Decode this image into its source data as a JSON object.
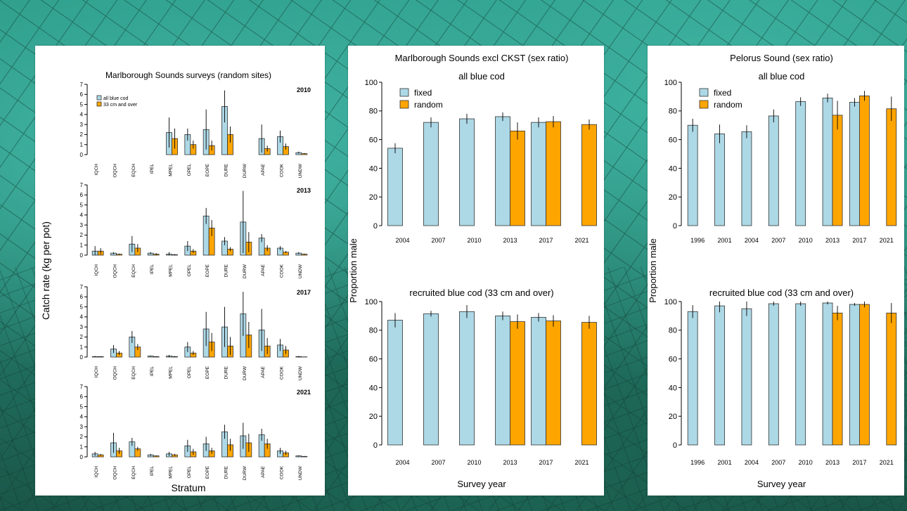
{
  "colors": {
    "fixed": "#add8e6",
    "random": "#ffa500",
    "stroke": "#333333"
  },
  "chart_data": [
    {
      "type": "bar",
      "title": "Marlborough Sounds surveys (random sites)",
      "xlabel": "Stratum",
      "ylabel": "Catch rate (kg per pot)",
      "ylim": [
        0,
        7
      ],
      "yticks": [
        0,
        1,
        2,
        3,
        4,
        5,
        6,
        7
      ],
      "legend": [
        "all blue cod",
        "33 cm and over"
      ],
      "legend_position": "top-left",
      "categories": [
        "IQCH",
        "OQCH",
        "EQCH",
        "IPEL",
        "MPEL",
        "OPEL",
        "EOPE",
        "DURE",
        "DURW",
        "APAE",
        "COOK",
        "UNDW"
      ],
      "facets": [
        {
          "year": "2010",
          "series": [
            {
              "name": "all blue cod",
              "values": [
                null,
                null,
                null,
                null,
                2.2,
                2.0,
                2.5,
                4.8,
                null,
                1.6,
                1.8,
                0.2
              ],
              "err": [
                null,
                null,
                null,
                null,
                1.5,
                0.6,
                2.0,
                1.6,
                null,
                1.4,
                0.6,
                0.1
              ]
            },
            {
              "name": "33 cm and over",
              "values": [
                null,
                null,
                null,
                null,
                1.6,
                1.0,
                0.9,
                2.0,
                null,
                0.6,
                0.8,
                0.1
              ],
              "err": [
                null,
                null,
                null,
                null,
                1.0,
                0.4,
                0.5,
                0.8,
                null,
                0.3,
                0.3,
                0.05
              ]
            }
          ]
        },
        {
          "year": "2013",
          "series": [
            {
              "name": "all blue cod",
              "values": [
                0.4,
                0.2,
                1.1,
                0.2,
                0.1,
                0.9,
                3.9,
                1.4,
                3.3,
                1.7,
                0.7,
                0.2
              ],
              "err": [
                0.5,
                0.1,
                0.8,
                0.1,
                0.2,
                0.5,
                0.8,
                0.4,
                3.1,
                0.4,
                0.2,
                0.1
              ]
            },
            {
              "name": "33 cm and over",
              "values": [
                0.4,
                0.1,
                0.7,
                0.1,
                0.05,
                0.4,
                2.7,
                0.6,
                1.3,
                0.7,
                0.3,
                0.1
              ],
              "err": [
                0.3,
                0.05,
                0.4,
                0.1,
                0.05,
                0.2,
                0.8,
                0.2,
                1.0,
                0.3,
                0.1,
                0.05
              ]
            }
          ]
        },
        {
          "year": "2017",
          "series": [
            {
              "name": "all blue cod",
              "values": [
                0.05,
                0.8,
                2.0,
                0.1,
                0.1,
                1.0,
                2.8,
                3.0,
                4.3,
                2.7,
                1.2,
                0.05
              ],
              "err": [
                0.05,
                0.4,
                0.6,
                0.05,
                0.1,
                0.5,
                1.7,
                2.0,
                2.2,
                2.1,
                0.6,
                0.05
              ]
            },
            {
              "name": "33 cm and over",
              "values": [
                0.05,
                0.4,
                1.0,
                0.05,
                0.05,
                0.4,
                1.5,
                1.1,
                2.2,
                1.1,
                0.7,
                0.02
              ],
              "err": [
                0.03,
                0.2,
                0.3,
                0.03,
                0.05,
                0.2,
                0.9,
                0.9,
                1.3,
                0.8,
                0.4,
                0.02
              ]
            }
          ]
        },
        {
          "year": "2021",
          "series": [
            {
              "name": "all blue cod",
              "values": [
                0.3,
                1.4,
                1.5,
                0.2,
                0.3,
                1.1,
                1.3,
                2.5,
                2.1,
                2.2,
                0.6,
                0.1
              ],
              "err": [
                0.2,
                1.0,
                0.4,
                0.1,
                0.2,
                0.6,
                0.7,
                0.7,
                1.3,
                0.6,
                0.3,
                0.05
              ]
            },
            {
              "name": "33 cm and over",
              "values": [
                0.2,
                0.6,
                0.8,
                0.1,
                0.2,
                0.5,
                0.6,
                1.2,
                1.4,
                1.3,
                0.4,
                0.05
              ],
              "err": [
                0.1,
                0.3,
                0.2,
                0.05,
                0.1,
                0.3,
                0.3,
                0.6,
                0.9,
                0.5,
                0.2,
                0.03
              ]
            }
          ]
        }
      ]
    },
    {
      "type": "bar",
      "title": "Marlborough Sounds excl CKST (sex ratio)",
      "xlabel": "Survey year",
      "ylabel": "Proportion male",
      "ylim": [
        0,
        100
      ],
      "yticks": [
        0,
        20,
        40,
        60,
        80,
        100
      ],
      "legend": [
        "fixed",
        "random"
      ],
      "legend_position": "top-left",
      "categories": [
        "2004",
        "2007",
        "2010",
        "2013",
        "2017",
        "2021"
      ],
      "facets": [
        {
          "subtitle": "all blue cod",
          "series": [
            {
              "name": "fixed",
              "values": [
                54,
                72,
                74.5,
                76,
                72,
                null
              ],
              "err": [
                3.5,
                3.5,
                3.5,
                3,
                3.5,
                null
              ]
            },
            {
              "name": "random",
              "values": [
                null,
                null,
                null,
                66,
                72.5,
                70.5
              ],
              "err": [
                null,
                null,
                null,
                6,
                4,
                3.5
              ]
            }
          ]
        },
        {
          "subtitle": "recruited blue cod (33 cm and over)",
          "series": [
            {
              "name": "fixed",
              "values": [
                87,
                91.5,
                93,
                90,
                89,
                null
              ],
              "err": [
                5,
                2,
                4.5,
                3,
                3,
                null
              ]
            },
            {
              "name": "random",
              "values": [
                null,
                null,
                null,
                86,
                86.5,
                85.5
              ],
              "err": [
                null,
                null,
                null,
                5,
                4,
                4.5
              ]
            }
          ]
        }
      ]
    },
    {
      "type": "bar",
      "title": "Pelorus Sound (sex ratio)",
      "xlabel": "Survey year",
      "ylabel": "Proportion male",
      "ylim": [
        0,
        100
      ],
      "yticks": [
        0,
        20,
        40,
        60,
        80,
        100
      ],
      "legend": [
        "fixed",
        "random"
      ],
      "legend_position": "top-left",
      "categories": [
        "1996",
        "2001",
        "2004",
        "2007",
        "2010",
        "2013",
        "2017",
        "2021"
      ],
      "facets": [
        {
          "subtitle": "all blue cod",
          "series": [
            {
              "name": "fixed",
              "values": [
                70,
                64,
                65.5,
                76.5,
                86.5,
                89,
                86,
                null
              ],
              "err": [
                4.5,
                6.5,
                4.5,
                4.5,
                3,
                3,
                3,
                null
              ]
            },
            {
              "name": "random",
              "values": [
                null,
                null,
                null,
                null,
                null,
                77,
                90.5,
                81.5
              ],
              "err": [
                null,
                null,
                null,
                null,
                null,
                10,
                3.5,
                8.5
              ]
            }
          ]
        },
        {
          "subtitle": "recruited blue cod (33 cm and over)",
          "series": [
            {
              "name": "fixed",
              "values": [
                93,
                97,
                95,
                98.5,
                98.5,
                99,
                98,
                null
              ],
              "err": [
                4.5,
                4.5,
                5,
                1.5,
                1.5,
                1,
                1,
                null
              ]
            },
            {
              "name": "random",
              "values": [
                null,
                null,
                null,
                null,
                null,
                92,
                98,
                92
              ],
              "err": [
                null,
                null,
                null,
                null,
                null,
                5,
                2,
                7
              ]
            }
          ]
        }
      ]
    }
  ]
}
